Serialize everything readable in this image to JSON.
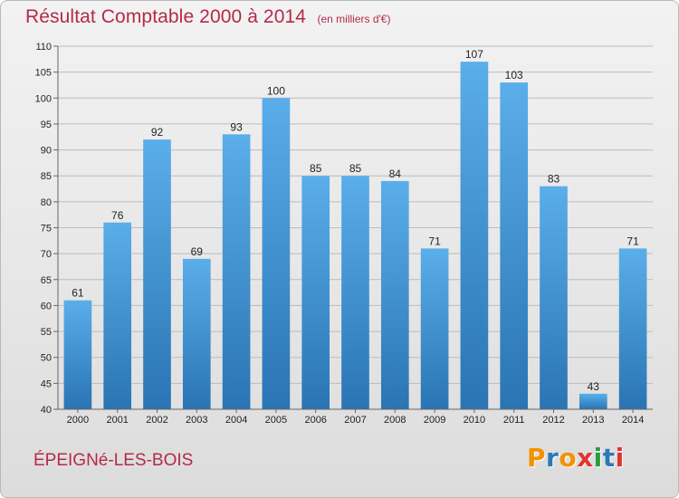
{
  "header": {
    "title": "Résultat Comptable 2000 à 2014",
    "subtitle": "(en milliers d'€)"
  },
  "commune": "ÉPEIGNé-LES-BOIS",
  "logo": {
    "letters": [
      "P",
      "r",
      "o",
      "x",
      "i",
      "t",
      "i"
    ],
    "colors": [
      "#f39200",
      "#2a7ab7",
      "#f39200",
      "#e3342f",
      "#2a9d3b",
      "#2a7ab7",
      "#e3342f"
    ]
  },
  "colors": {
    "bar_top": "#5aaeea",
    "bar_bottom": "#2a74b4",
    "text_accent": "#b5294a"
  },
  "chart_data": {
    "type": "bar",
    "title": "Résultat Comptable 2000 à 2014",
    "subtitle": "(en milliers d'€)",
    "categories": [
      "2000",
      "2001",
      "2002",
      "2003",
      "2004",
      "2005",
      "2006",
      "2007",
      "2008",
      "2009",
      "2010",
      "2011",
      "2012",
      "2013",
      "2014"
    ],
    "values": [
      61,
      76,
      92,
      69,
      93,
      100,
      85,
      85,
      84,
      71,
      107,
      103,
      83,
      43,
      71
    ],
    "ylim": [
      40,
      110
    ],
    "yticks": [
      40,
      45,
      50,
      55,
      60,
      65,
      70,
      75,
      80,
      85,
      90,
      95,
      100,
      105,
      110
    ],
    "grid": true
  }
}
